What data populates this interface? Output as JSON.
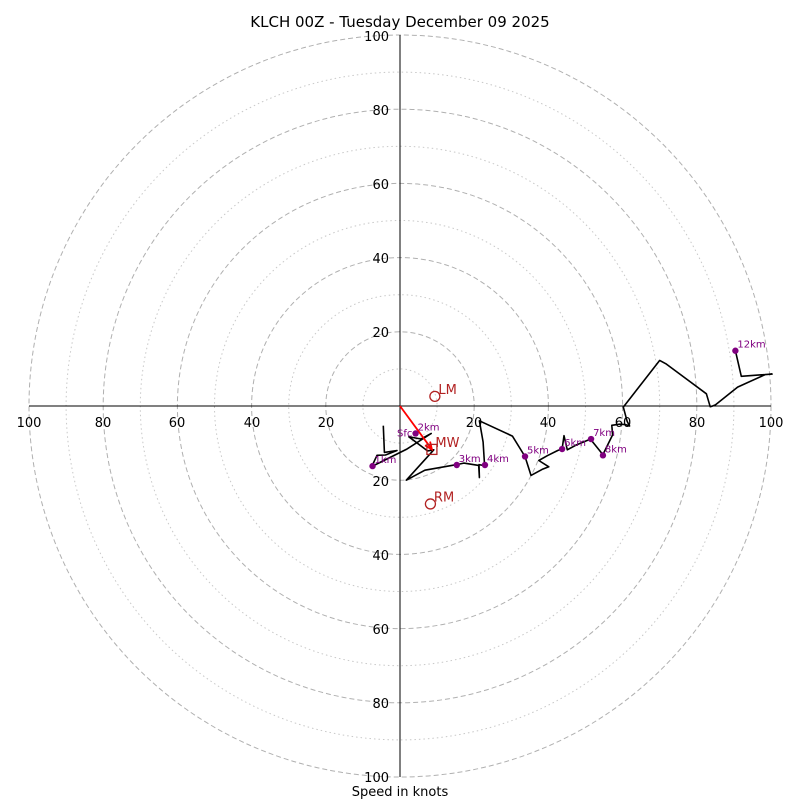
{
  "chart_data": {
    "type": "hodograph",
    "title": "KLCH 00Z - Tuesday December 09 2025",
    "xlabel": "Speed in knots",
    "units": "knots",
    "xlim": [
      -100,
      100
    ],
    "ylim": [
      -100,
      100
    ],
    "rings": [
      20,
      40,
      60,
      80,
      100
    ],
    "minor_rings": [
      10,
      30,
      50,
      70,
      90
    ],
    "ticks": {
      "x_left": [
        "100",
        "80",
        "60",
        "40",
        "20"
      ],
      "x_right": [
        "20",
        "40",
        "60",
        "80",
        "100"
      ],
      "y_top": [
        "100",
        "80",
        "60",
        "40",
        "20"
      ],
      "y_bottom": [
        "20",
        "40",
        "60",
        "80",
        "100"
      ]
    },
    "colors": {
      "trace": "#000000",
      "height_marker": "#800080",
      "motion": "#b22222",
      "shear": "#ff0000",
      "ring": "#b0b0b0",
      "axis": "#000000"
    },
    "trace": [
      [
        -4.5,
        -5.3
      ],
      [
        -4.2,
        -12.5
      ],
      [
        -0.8,
        -12.0
      ],
      [
        -3.9,
        -13.2
      ],
      [
        -6.2,
        -13.3
      ],
      [
        -7.6,
        -16.3
      ],
      [
        1.7,
        -11.7
      ],
      [
        8.4,
        -7.4
      ],
      [
        5.7,
        -8.9
      ],
      [
        2.4,
        -8.3
      ],
      [
        7.4,
        -12.1
      ],
      [
        9.1,
        -11.8
      ],
      [
        1.7,
        -20.0
      ],
      [
        6.7,
        -17.3
      ],
      [
        15.3,
        -15.8
      ],
      [
        17.2,
        -15.4
      ],
      [
        21.2,
        -16.0
      ],
      [
        21.4,
        -19.3
      ],
      [
        21.3,
        -15.8
      ],
      [
        22.8,
        -16.1
      ],
      [
        22.4,
        -9.7
      ],
      [
        21.4,
        -4.0
      ],
      [
        30.3,
        -8.1
      ],
      [
        33.7,
        -13.6
      ],
      [
        35.3,
        -18.7
      ],
      [
        38.3,
        -17.1
      ],
      [
        40.1,
        -16.4
      ],
      [
        37.4,
        -14.7
      ],
      [
        39.7,
        -13.4
      ],
      [
        42.5,
        -12.0
      ],
      [
        43.7,
        -11.6
      ],
      [
        44.2,
        -8.0
      ],
      [
        45.1,
        -11.8
      ],
      [
        47.5,
        -10.5
      ],
      [
        51.4,
        -8.9
      ],
      [
        51.3,
        -8.9
      ],
      [
        54.7,
        -13.1
      ],
      [
        57.3,
        -7.8
      ],
      [
        57.1,
        -5.2
      ],
      [
        59.2,
        -4.9
      ],
      [
        60.8,
        -5.0
      ],
      [
        61.9,
        -5.4
      ],
      [
        61.2,
        -4.1
      ],
      [
        60.2,
        -0.3
      ],
      [
        70.0,
        12.3
      ],
      [
        71.8,
        11.3
      ],
      [
        82.6,
        3.3
      ],
      [
        83.6,
        -0.2
      ],
      [
        84.0,
        -0.1
      ],
      [
        85.0,
        0.3
      ],
      [
        91.0,
        5.1
      ],
      [
        98.5,
        8.5
      ],
      [
        100.3,
        8.6
      ],
      [
        96.0,
        8.3
      ],
      [
        92.0,
        8.0
      ],
      [
        90.4,
        14.9
      ]
    ],
    "height_markers": [
      {
        "label": "1km",
        "u": -7.4,
        "v": -16.2
      },
      {
        "label": "2km",
        "u": 4.2,
        "v": -7.4
      },
      {
        "label": "3km",
        "u": 15.3,
        "v": -15.9
      },
      {
        "label": "4km",
        "u": 22.9,
        "v": -15.9
      },
      {
        "label": "5km",
        "u": 33.7,
        "v": -13.6
      },
      {
        "label": "6km",
        "u": 43.7,
        "v": -11.6
      },
      {
        "label": "7km",
        "u": 51.5,
        "v": -8.9
      },
      {
        "label": "8km",
        "u": 54.7,
        "v": -13.3
      },
      {
        "label": "12km",
        "u": 90.4,
        "v": 14.9
      }
    ],
    "surface_marker": {
      "label": "Sfc",
      "u": -0.8,
      "v": -7.4
    },
    "storm_motion": [
      {
        "label": "LM",
        "u": 9.4,
        "v": 2.6
      },
      {
        "label": "MW",
        "u": 8.6,
        "v": -11.7
      },
      {
        "label": "RM",
        "u": 8.2,
        "v": -26.4
      }
    ],
    "shear_vector": {
      "from": [
        0,
        0
      ],
      "to": [
        8.6,
        -11.7
      ]
    }
  }
}
